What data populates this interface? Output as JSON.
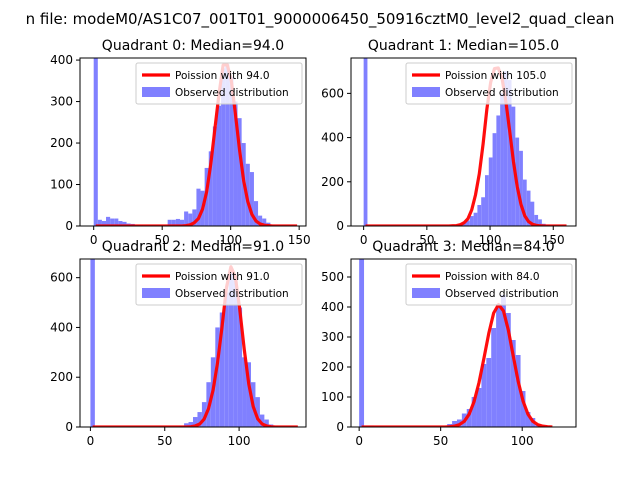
{
  "figure": {
    "suptitle": "n file: modeM0/AS1C07_001T01_9000006450_50916cztM0_level2_quad_clean"
  },
  "colors": {
    "histogram": "#8080ff",
    "poisson": "#ff0000",
    "frame": "#000000",
    "background": "#ffffff"
  },
  "chart_data": [
    {
      "type": "bar",
      "title": "Quadrant 0: Median=94.0",
      "xlim": [
        -10,
        155
      ],
      "ylim": [
        0,
        405
      ],
      "xticks": [
        0,
        50,
        100,
        150
      ],
      "yticks": [
        0,
        100,
        200,
        300,
        400
      ],
      "bin_width": 3,
      "legend_position": "top-right",
      "series": [
        {
          "name": "Poission with 94.0",
          "kind": "line",
          "lambda": 94.0,
          "scale": 395,
          "x": [
            0,
            3,
            6,
            9,
            12,
            15,
            18,
            21,
            24,
            27,
            30,
            33,
            36,
            39,
            42,
            45,
            48,
            51,
            54,
            57,
            60,
            63,
            66,
            69,
            72,
            75,
            78,
            81,
            84,
            87,
            90,
            93,
            96,
            99,
            102,
            105,
            108,
            111,
            114,
            117,
            120,
            123,
            126,
            129,
            132,
            135,
            138,
            141,
            144,
            147
          ],
          "y": [
            0,
            0,
            0,
            0,
            0,
            0,
            0,
            0,
            0,
            0,
            0,
            0,
            0,
            0,
            0,
            0,
            0,
            0,
            0,
            0,
            0,
            0,
            1,
            3,
            8,
            18,
            41,
            83,
            150,
            235,
            319,
            388,
            389,
            350,
            269,
            183,
            109,
            59,
            28,
            12,
            5,
            2,
            1,
            0,
            0,
            0,
            0,
            0,
            0,
            0
          ]
        },
        {
          "name": "Observed distribution",
          "kind": "bars",
          "x": [
            0,
            3,
            6,
            9,
            12,
            15,
            18,
            21,
            24,
            27,
            30,
            33,
            36,
            39,
            42,
            45,
            48,
            51,
            54,
            57,
            60,
            63,
            66,
            69,
            72,
            75,
            78,
            81,
            84,
            87,
            90,
            93,
            96,
            99,
            102,
            105,
            108,
            111,
            114,
            117,
            120,
            123,
            126,
            129,
            132,
            135,
            138,
            141,
            144,
            147
          ],
          "y": [
            405,
            15,
            12,
            22,
            18,
            18,
            12,
            10,
            6,
            5,
            2,
            2,
            0,
            0,
            0,
            0,
            0,
            0,
            15,
            15,
            17,
            15,
            35,
            30,
            40,
            90,
            85,
            140,
            180,
            240,
            290,
            380,
            390,
            360,
            300,
            260,
            200,
            150,
            130,
            60,
            25,
            18,
            8,
            3,
            0,
            0,
            0,
            0,
            0,
            0
          ]
        }
      ]
    },
    {
      "type": "bar",
      "title": "Quadrant 1: Median=105.0",
      "xlim": [
        -10,
        168
      ],
      "ylim": [
        0,
        760
      ],
      "xticks": [
        0,
        50,
        100,
        150
      ],
      "yticks": [
        0,
        200,
        400,
        600
      ],
      "bin_width": 3,
      "legend_position": "top-right",
      "series": [
        {
          "name": "Poission with 105.0",
          "kind": "line",
          "lambda": 105.0,
          "scale": 720,
          "x": [
            0,
            3,
            6,
            9,
            12,
            15,
            18,
            21,
            24,
            27,
            30,
            33,
            36,
            39,
            42,
            45,
            48,
            51,
            54,
            57,
            60,
            63,
            66,
            69,
            72,
            75,
            78,
            81,
            84,
            87,
            90,
            93,
            96,
            99,
            102,
            105,
            108,
            111,
            114,
            117,
            120,
            123,
            126,
            129,
            132,
            135,
            138,
            141,
            144,
            147,
            150,
            153,
            156,
            159
          ],
          "y": [
            0,
            0,
            0,
            0,
            0,
            0,
            0,
            0,
            0,
            0,
            0,
            0,
            0,
            0,
            0,
            0,
            0,
            0,
            0,
            0,
            0,
            0,
            0,
            1,
            2,
            6,
            15,
            33,
            73,
            141,
            236,
            371,
            529,
            650,
            712,
            715,
            668,
            564,
            431,
            292,
            178,
            97,
            46,
            20,
            8,
            3,
            1,
            0,
            0,
            0,
            0,
            0,
            0,
            0
          ]
        },
        {
          "name": "Observed distribution",
          "kind": "bars",
          "x": [
            0,
            3,
            6,
            9,
            12,
            15,
            18,
            21,
            24,
            27,
            30,
            33,
            36,
            39,
            42,
            45,
            48,
            51,
            54,
            57,
            60,
            63,
            66,
            69,
            72,
            75,
            78,
            81,
            84,
            87,
            90,
            93,
            96,
            99,
            102,
            105,
            108,
            111,
            114,
            117,
            120,
            123,
            126,
            129,
            132,
            135,
            138,
            141,
            144,
            147,
            150,
            153,
            156,
            159
          ],
          "y": [
            760,
            0,
            0,
            0,
            0,
            0,
            0,
            0,
            0,
            0,
            0,
            0,
            0,
            0,
            0,
            0,
            0,
            0,
            0,
            0,
            0,
            0,
            0,
            0,
            2,
            10,
            15,
            25,
            45,
            60,
            95,
            130,
            230,
            310,
            420,
            500,
            600,
            700,
            660,
            540,
            400,
            340,
            210,
            160,
            110,
            50,
            30,
            10,
            5,
            0,
            0,
            0,
            0,
            0
          ]
        }
      ]
    },
    {
      "type": "bar",
      "title": "Quadrant 2: Median=91.0",
      "xlim": [
        -7,
        145
      ],
      "ylim": [
        0,
        675
      ],
      "xticks": [
        0,
        50,
        100
      ],
      "yticks": [
        0,
        200,
        400,
        600
      ],
      "bin_width": 3,
      "legend_position": "top-right",
      "series": [
        {
          "name": "Poission with 91.0",
          "kind": "line",
          "lambda": 91.0,
          "scale": 648,
          "x": [
            0,
            3,
            6,
            9,
            12,
            15,
            18,
            21,
            24,
            27,
            30,
            33,
            36,
            39,
            42,
            45,
            48,
            51,
            54,
            57,
            60,
            63,
            66,
            69,
            72,
            75,
            78,
            81,
            84,
            87,
            90,
            93,
            96,
            99,
            102,
            105,
            108,
            111,
            114,
            117,
            120,
            123,
            126,
            129,
            132,
            135,
            138
          ],
          "y": [
            0,
            0,
            0,
            0,
            0,
            0,
            0,
            0,
            0,
            0,
            0,
            0,
            0,
            0,
            0,
            0,
            0,
            0,
            0,
            0,
            0,
            0,
            1,
            4,
            12,
            32,
            75,
            148,
            258,
            401,
            560,
            644,
            603,
            470,
            310,
            173,
            82,
            33,
            12,
            4,
            1,
            0,
            0,
            0,
            0,
            0,
            0
          ]
        },
        {
          "name": "Observed distribution",
          "kind": "bars",
          "x": [
            0,
            3,
            6,
            9,
            12,
            15,
            18,
            21,
            24,
            27,
            30,
            33,
            36,
            39,
            42,
            45,
            48,
            51,
            54,
            57,
            60,
            63,
            66,
            69,
            72,
            75,
            78,
            81,
            84,
            87,
            90,
            93,
            96,
            99,
            102,
            105,
            108,
            111,
            114,
            117,
            120,
            123,
            126,
            129,
            132,
            135,
            138
          ],
          "y": [
            675,
            0,
            0,
            0,
            0,
            0,
            0,
            0,
            0,
            0,
            0,
            0,
            0,
            0,
            0,
            0,
            0,
            0,
            0,
            0,
            5,
            15,
            20,
            40,
            60,
            100,
            180,
            280,
            400,
            460,
            540,
            620,
            590,
            480,
            280,
            260,
            180,
            120,
            50,
            30,
            10,
            5,
            0,
            0,
            0,
            0,
            0
          ]
        }
      ]
    },
    {
      "type": "bar",
      "title": "Quadrant 3: Median=84.0",
      "xlim": [
        -5,
        133
      ],
      "ylim": [
        0,
        560
      ],
      "xticks": [
        0,
        50,
        100
      ],
      "yticks": [
        0,
        100,
        200,
        300,
        400,
        500
      ],
      "bin_width": 3,
      "legend_position": "top-right",
      "series": [
        {
          "name": "Poission with 84.0",
          "kind": "line",
          "lambda": 84.0,
          "scale": 540,
          "x": [
            0,
            3,
            6,
            9,
            12,
            15,
            18,
            21,
            24,
            27,
            30,
            33,
            36,
            39,
            42,
            45,
            48,
            51,
            54,
            57,
            60,
            63,
            66,
            69,
            72,
            75,
            78,
            81,
            84,
            87,
            90,
            93,
            96,
            99,
            102,
            105,
            108,
            111,
            114,
            117
          ],
          "y": [
            0,
            0,
            0,
            0,
            0,
            0,
            0,
            0,
            0,
            0,
            0,
            0,
            0,
            0,
            0,
            0,
            0,
            0,
            1,
            3,
            8,
            19,
            43,
            85,
            148,
            228,
            312,
            380,
            408,
            387,
            323,
            237,
            153,
            87,
            43,
            19,
            8,
            3,
            1,
            0
          ]
        },
        {
          "name": "Observed distribution",
          "kind": "bars",
          "x": [
            0,
            3,
            6,
            9,
            12,
            15,
            18,
            21,
            24,
            27,
            30,
            33,
            36,
            39,
            42,
            45,
            48,
            51,
            54,
            57,
            60,
            63,
            66,
            69,
            72,
            75,
            78,
            81,
            84,
            87,
            90,
            93,
            96,
            99,
            102,
            105,
            108,
            111,
            114,
            117
          ],
          "y": [
            560,
            5,
            5,
            3,
            3,
            2,
            2,
            0,
            0,
            0,
            0,
            0,
            0,
            0,
            0,
            0,
            0,
            0,
            10,
            20,
            25,
            45,
            60,
            100,
            130,
            210,
            230,
            330,
            410,
            440,
            380,
            290,
            240,
            120,
            50,
            30,
            10,
            5,
            0,
            0
          ]
        }
      ]
    }
  ]
}
